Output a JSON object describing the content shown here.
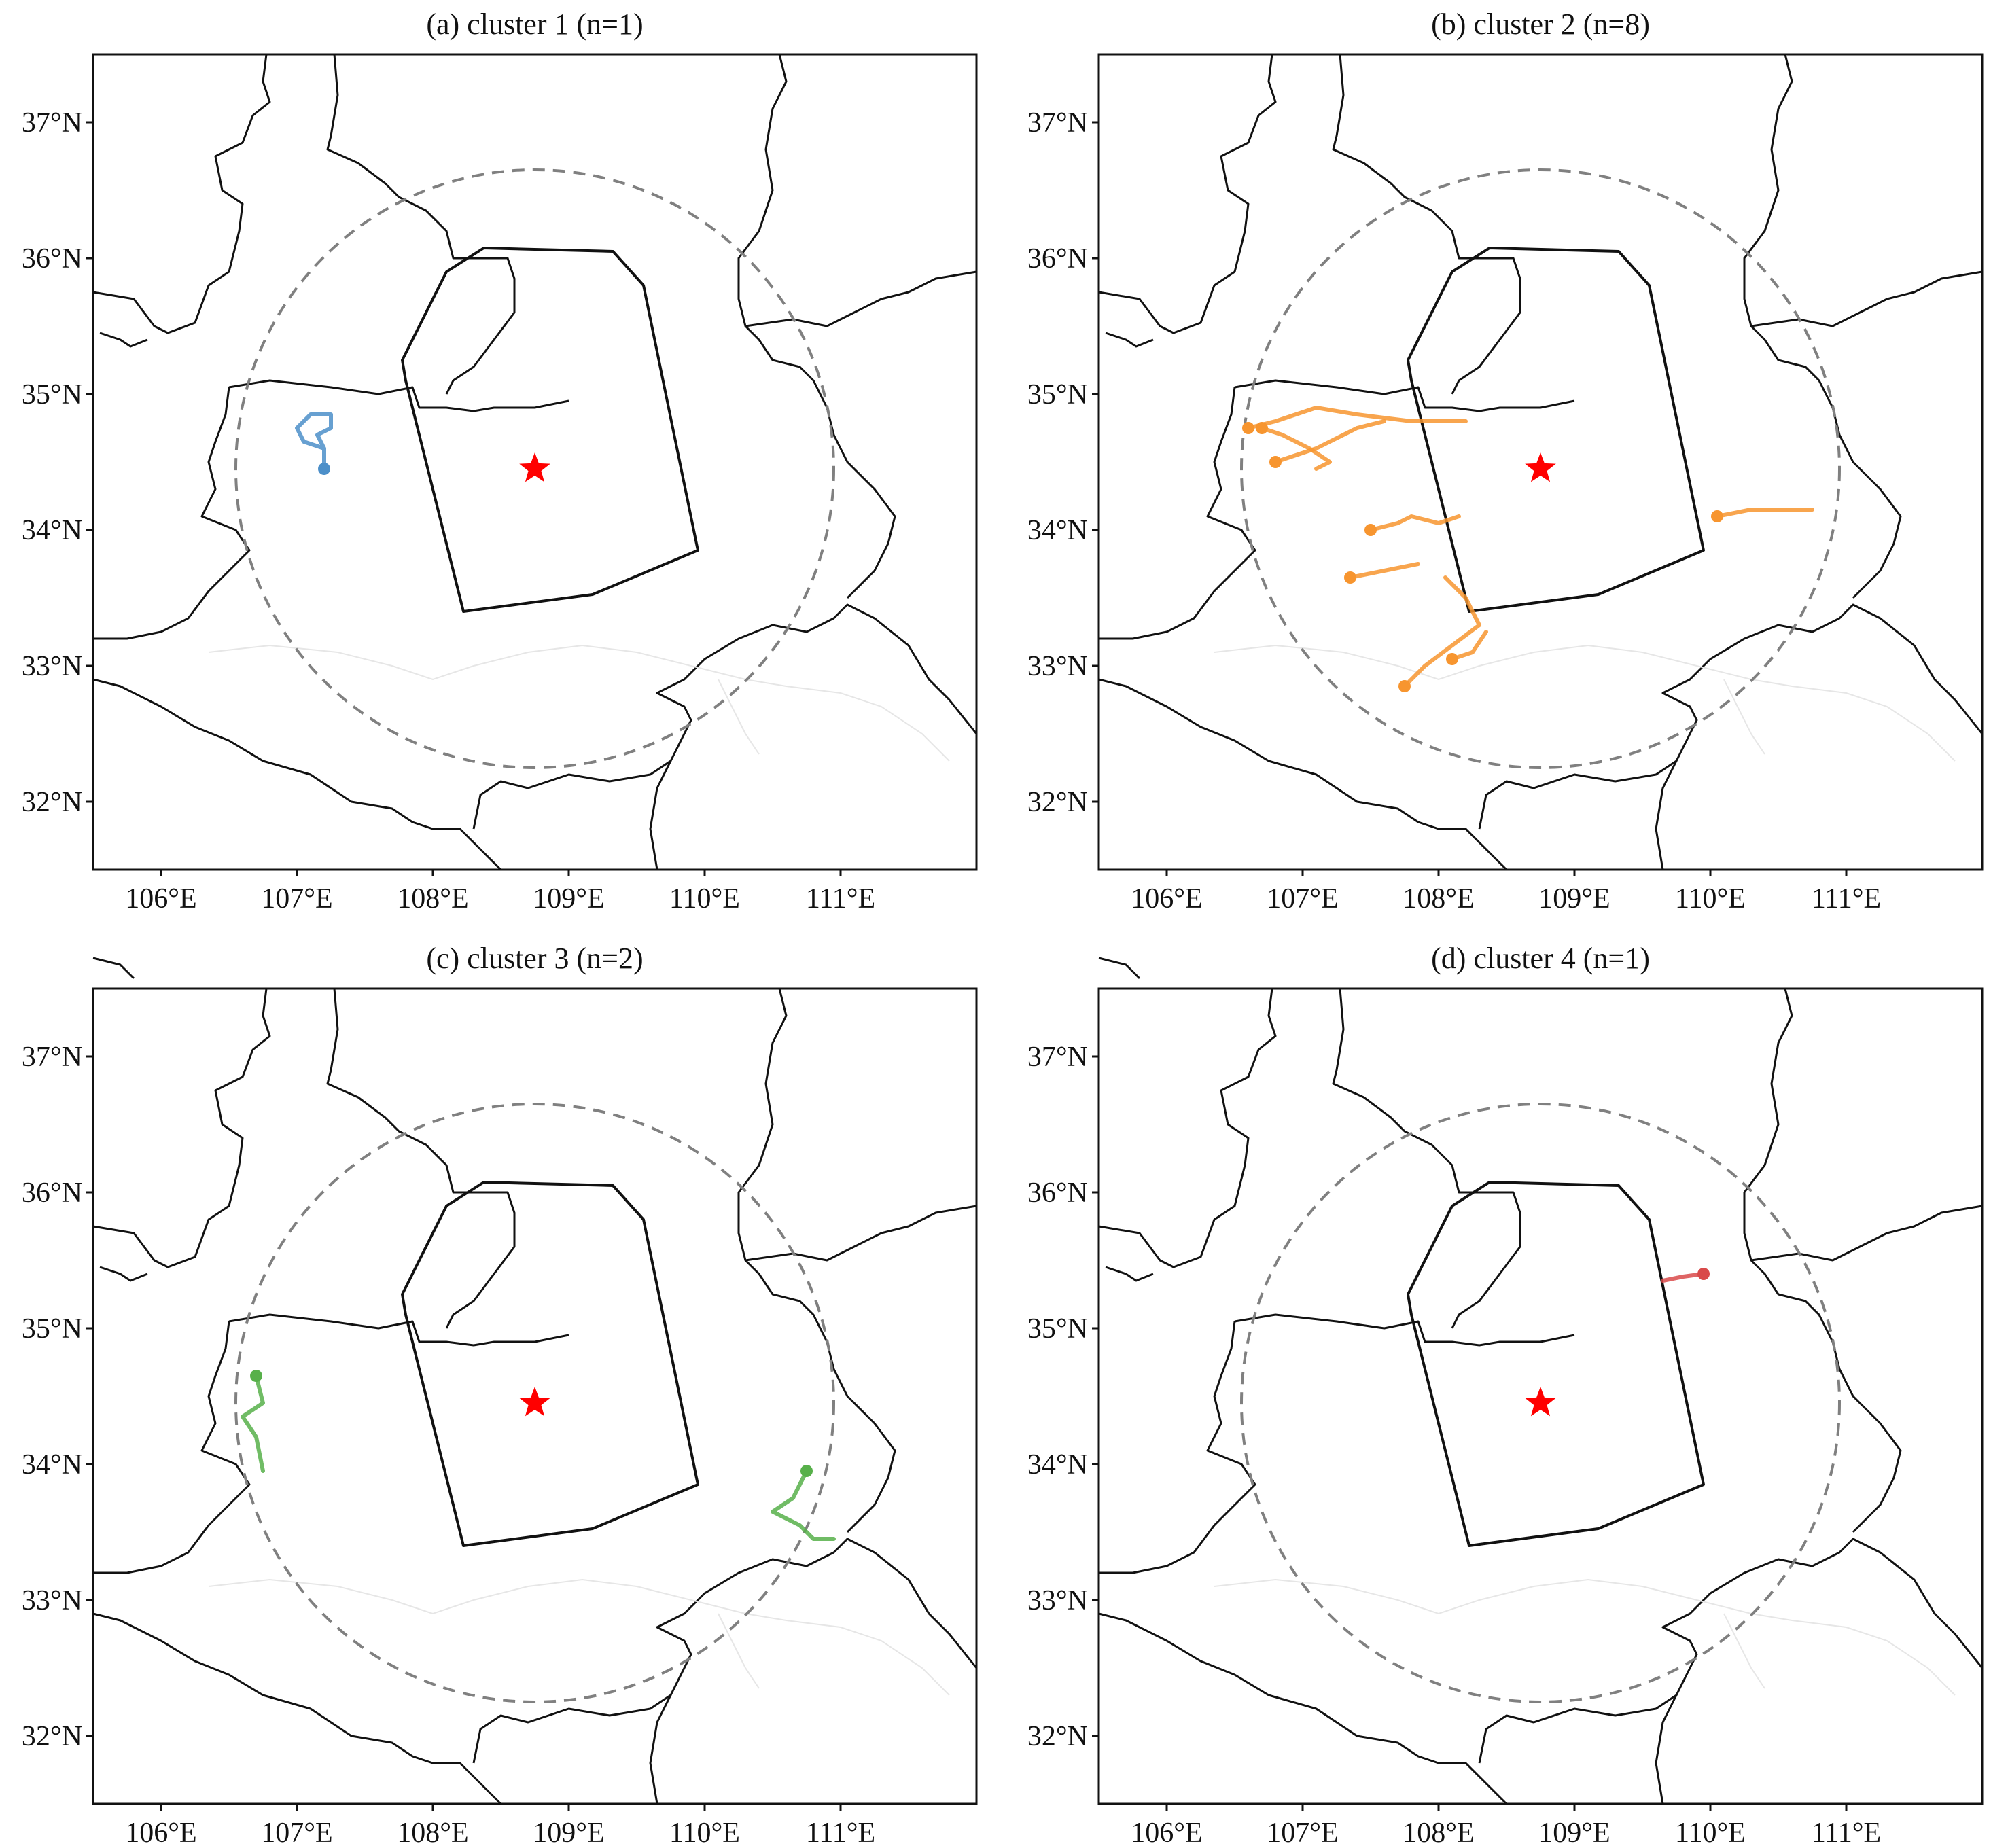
{
  "figure": {
    "x_ticks": [
      "106°E",
      "107°E",
      "108°E",
      "109°E",
      "110°E",
      "111°E"
    ],
    "y_ticks": [
      "32°N",
      "33°N",
      "34°N",
      "35°N",
      "36°N",
      "37°N"
    ],
    "colors": {
      "border": "#111111",
      "circle": "#808080",
      "center_star": "#ff0000"
    },
    "center_marker": "red-star",
    "panels": [
      {
        "title": "(a) cluster 1 (n=1)",
        "color": "#4c8fc9"
      },
      {
        "title": "(b) cluster 2 (n=8)",
        "color": "#f7952f"
      },
      {
        "title": "(c) cluster 3 (n=2)",
        "color": "#57b04a"
      },
      {
        "title": "(d) cluster 4 (n=1)",
        "color": "#d94a4a"
      }
    ]
  },
  "chart_data": [
    {
      "type": "map",
      "title": "(a) cluster 1 (n=1)",
      "xlim": [
        105.5,
        112.0
      ],
      "ylim": [
        31.5,
        37.5
      ],
      "center": [
        108.75,
        34.45
      ],
      "circle_radius_deg_lat": 2.2,
      "trajectories": [
        {
          "start": [
            107.2,
            34.45
          ],
          "points": [
            [
              107.2,
              34.45
            ],
            [
              107.2,
              34.6
            ],
            [
              107.15,
              34.7
            ],
            [
              107.25,
              34.75
            ],
            [
              107.25,
              34.85
            ],
            [
              107.1,
              34.85
            ],
            [
              107.0,
              34.75
            ],
            [
              107.05,
              34.65
            ],
            [
              107.2,
              34.6
            ]
          ]
        }
      ]
    },
    {
      "type": "map",
      "title": "(b) cluster 2 (n=8)",
      "xlim": [
        105.5,
        112.0
      ],
      "ylim": [
        31.5,
        37.5
      ],
      "center": [
        108.75,
        34.45
      ],
      "circle_radius_deg_lat": 2.2,
      "trajectories": [
        {
          "start": [
            106.6,
            34.75
          ],
          "points": [
            [
              106.6,
              34.75
            ],
            [
              106.8,
              34.8
            ],
            [
              107.1,
              34.9
            ],
            [
              107.4,
              34.85
            ],
            [
              107.8,
              34.8
            ],
            [
              108.2,
              34.8
            ]
          ]
        },
        {
          "start": [
            106.7,
            34.75
          ],
          "points": [
            [
              106.7,
              34.75
            ],
            [
              106.85,
              34.7
            ],
            [
              107.05,
              34.6
            ],
            [
              107.2,
              34.5
            ],
            [
              107.1,
              34.45
            ]
          ]
        },
        {
          "start": [
            106.8,
            34.5
          ],
          "points": [
            [
              106.8,
              34.5
            ],
            [
              107.1,
              34.6
            ],
            [
              107.4,
              34.75
            ],
            [
              107.6,
              34.8
            ]
          ]
        },
        {
          "start": [
            107.5,
            34.0
          ],
          "points": [
            [
              107.5,
              34.0
            ],
            [
              107.7,
              34.05
            ],
            [
              107.8,
              34.1
            ],
            [
              108.0,
              34.05
            ],
            [
              108.15,
              34.1
            ]
          ]
        },
        {
          "start": [
            107.35,
            33.65
          ],
          "points": [
            [
              107.35,
              33.65
            ],
            [
              107.6,
              33.7
            ],
            [
              107.85,
              33.75
            ]
          ]
        },
        {
          "start": [
            107.75,
            32.85
          ],
          "points": [
            [
              107.75,
              32.85
            ],
            [
              107.9,
              33.0
            ],
            [
              108.1,
              33.15
            ],
            [
              108.3,
              33.3
            ],
            [
              108.2,
              33.5
            ],
            [
              108.05,
              33.65
            ]
          ]
        },
        {
          "start": [
            108.1,
            33.05
          ],
          "points": [
            [
              108.1,
              33.05
            ],
            [
              108.25,
              33.1
            ],
            [
              108.35,
              33.25
            ]
          ]
        },
        {
          "start": [
            110.05,
            34.1
          ],
          "points": [
            [
              110.05,
              34.1
            ],
            [
              110.3,
              34.15
            ],
            [
              110.5,
              34.15
            ],
            [
              110.75,
              34.15
            ]
          ]
        }
      ]
    },
    {
      "type": "map",
      "title": "(c) cluster 3 (n=2)",
      "xlim": [
        105.5,
        112.0
      ],
      "ylim": [
        31.5,
        37.5
      ],
      "center": [
        108.75,
        34.45
      ],
      "circle_radius_deg_lat": 2.2,
      "trajectories": [
        {
          "start": [
            106.7,
            34.65
          ],
          "points": [
            [
              106.7,
              34.65
            ],
            [
              106.75,
              34.45
            ],
            [
              106.6,
              34.35
            ],
            [
              106.7,
              34.2
            ],
            [
              106.75,
              33.95
            ]
          ]
        },
        {
          "start": [
            110.75,
            33.95
          ],
          "points": [
            [
              110.75,
              33.95
            ],
            [
              110.65,
              33.75
            ],
            [
              110.5,
              33.65
            ],
            [
              110.7,
              33.55
            ],
            [
              110.8,
              33.45
            ],
            [
              110.95,
              33.45
            ]
          ]
        }
      ]
    },
    {
      "type": "map",
      "title": "(d) cluster 4 (n=1)",
      "xlim": [
        105.5,
        112.0
      ],
      "ylim": [
        31.5,
        37.5
      ],
      "center": [
        108.75,
        34.45
      ],
      "circle_radius_deg_lat": 2.2,
      "trajectories": [
        {
          "start": [
            109.95,
            35.4
          ],
          "points": [
            [
              109.95,
              35.4
            ],
            [
              109.8,
              35.38
            ],
            [
              109.65,
              35.35
            ]
          ]
        }
      ]
    }
  ]
}
